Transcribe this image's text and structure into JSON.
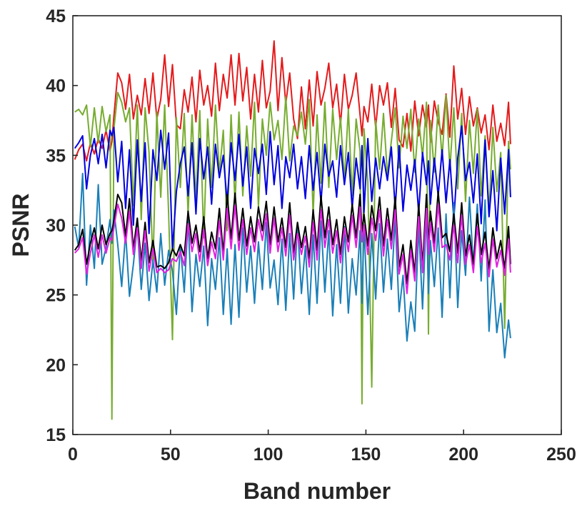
{
  "chart_data": {
    "type": "line",
    "title": "",
    "xlabel": "Band number",
    "ylabel": "PSNR",
    "xlim": [
      0,
      250
    ],
    "ylim": [
      15,
      45
    ],
    "xticks": [
      0,
      50,
      100,
      150,
      200,
      250
    ],
    "yticks": [
      15,
      20,
      25,
      30,
      35,
      40,
      45
    ],
    "grid": false,
    "legend": "none",
    "x": [
      1,
      3,
      5,
      7,
      9,
      11,
      13,
      15,
      17,
      19,
      20,
      21,
      23,
      25,
      27,
      29,
      31,
      33,
      35,
      37,
      39,
      41,
      43,
      45,
      47,
      49,
      51,
      53,
      55,
      57,
      59,
      61,
      63,
      65,
      67,
      69,
      71,
      73,
      75,
      77,
      79,
      81,
      83,
      85,
      87,
      89,
      91,
      93,
      95,
      97,
      99,
      101,
      103,
      105,
      107,
      109,
      111,
      113,
      115,
      117,
      119,
      121,
      123,
      125,
      127,
      129,
      131,
      133,
      135,
      137,
      139,
      141,
      143,
      145,
      147,
      148,
      149,
      151,
      153,
      155,
      157,
      159,
      161,
      163,
      165,
      167,
      169,
      171,
      173,
      175,
      177,
      179,
      181,
      182,
      183,
      185,
      187,
      189,
      191,
      193,
      195,
      197,
      199,
      201,
      203,
      205,
      207,
      209,
      211,
      213,
      215,
      217,
      219,
      221,
      223,
      224
    ],
    "series": [
      {
        "color": "#e41a1c",
        "values": [
          34.7,
          35.4,
          35.8,
          34.6,
          35.9,
          35.1,
          36.2,
          35.5,
          36.8,
          35.3,
          36.0,
          37.8,
          40.9,
          40.2,
          38.3,
          40.8,
          37.6,
          39.3,
          37.9,
          40.5,
          38.0,
          40.9,
          37.6,
          39.0,
          42.2,
          38.5,
          41.5,
          37.2,
          36.9,
          39.7,
          38.1,
          40.6,
          37.4,
          41.1,
          38.6,
          40.0,
          37.8,
          41.6,
          38.2,
          40.8,
          39.1,
          42.2,
          38.6,
          42.3,
          38.9,
          41.3,
          37.6,
          40.8,
          38.1,
          41.8,
          38.4,
          39.6,
          43.2,
          38.2,
          42.0,
          38.7,
          40.9,
          37.6,
          36.2,
          39.9,
          36.9,
          40.4,
          37.1,
          41.0,
          38.6,
          39.8,
          41.6,
          38.4,
          40.1,
          37.2,
          40.8,
          38.3,
          39.3,
          40.9,
          37.9,
          36.4,
          38.5,
          37.4,
          40.1,
          37.0,
          40.0,
          38.6,
          40.2,
          37.0,
          39.8,
          36.1,
          35.6,
          38.0,
          35.3,
          38.9,
          36.4,
          38.6,
          37.0,
          38.6,
          35.9,
          38.9,
          37.4,
          36.5,
          39.4,
          36.3,
          41.4,
          37.6,
          39.8,
          36.5,
          39.2,
          37.1,
          38.4,
          36.6,
          37.9,
          35.4,
          38.6,
          36.0,
          37.3,
          35.7,
          38.8,
          35.8
        ]
      },
      {
        "color": "#77ac30",
        "values": [
          38.1,
          38.3,
          37.9,
          38.6,
          35.6,
          38.4,
          35.9,
          38.5,
          36.7,
          37.9,
          16.1,
          36.9,
          39.5,
          38.8,
          37.4,
          38.4,
          31.4,
          38.6,
          30.4,
          38.4,
          35.2,
          27.0,
          38.1,
          32.0,
          38.6,
          30.9,
          21.8,
          37.7,
          32.7,
          38.0,
          30.8,
          37.9,
          31.8,
          38.2,
          29.1,
          37.6,
          32.7,
          38.6,
          33.7,
          36.8,
          29.6,
          37.9,
          31.6,
          38.1,
          32.1,
          37.1,
          33.5,
          38.8,
          31.3,
          37.6,
          35.0,
          38.8,
          36.1,
          37.5,
          34.7,
          39.2,
          34.6,
          37.1,
          36.4,
          38.1,
          35.8,
          39.0,
          30.8,
          37.9,
          33.0,
          38.8,
          32.7,
          38.3,
          34.7,
          37.7,
          33.2,
          38.3,
          32.1,
          37.6,
          35.3,
          17.2,
          36.9,
          33.1,
          18.4,
          37.5,
          34.0,
          38.0,
          33.6,
          36.0,
          38.4,
          34.1,
          37.8,
          35.5,
          38.3,
          33.8,
          37.6,
          34.9,
          38.8,
          22.2,
          37.5,
          33.8,
          38.6,
          34.8,
          39.3,
          34.0,
          38.4,
          32.6,
          38.0,
          31.7,
          37.5,
          33.7,
          38.3,
          32.1,
          36.4,
          30.9,
          37.0,
          32.4,
          35.2,
          22.6,
          36.0,
          34.0
        ]
      },
      {
        "color": "#0000e0",
        "values": [
          35.5,
          35.9,
          36.4,
          32.6,
          35.0,
          36.2,
          34.4,
          36.5,
          34.1,
          36.8,
          36.4,
          37.0,
          33.1,
          36.0,
          31.2,
          35.4,
          30.0,
          36.1,
          31.7,
          35.9,
          29.4,
          35.4,
          33.2,
          36.8,
          34.0,
          36.6,
          28.2,
          32.4,
          34.4,
          35.6,
          32.1,
          35.9,
          30.8,
          36.2,
          33.3,
          35.6,
          31.5,
          35.8,
          33.4,
          35.0,
          31.6,
          35.9,
          33.2,
          36.5,
          32.8,
          35.6,
          31.2,
          35.5,
          33.7,
          35.8,
          32.2,
          36.7,
          32.9,
          35.7,
          31.2,
          34.9,
          33.4,
          35.8,
          32.6,
          34.9,
          31.9,
          35.7,
          32.5,
          35.2,
          31.6,
          35.8,
          33.5,
          34.6,
          32.0,
          35.7,
          32.9,
          35.2,
          31.2,
          34.8,
          32.6,
          35.7,
          30.9,
          36.2,
          31.7,
          34.8,
          32.6,
          34.9,
          33.2,
          35.6,
          31.2,
          35.7,
          31.0,
          34.3,
          32.5,
          34.7,
          30.9,
          35.2,
          32.9,
          34.6,
          31.5,
          34.8,
          32.1,
          35.4,
          31.6,
          34.7,
          30.4,
          34.8,
          37.1,
          33.2,
          34.5,
          31.6,
          35.1,
          30.1,
          36.1,
          30.6,
          33.9,
          29.6,
          34.8,
          30.8,
          35.4,
          32.0
        ]
      },
      {
        "color": "#1a7fb8",
        "values": [
          29.9,
          28.4,
          33.7,
          25.7,
          30.0,
          26.9,
          32.9,
          27.2,
          28.4,
          30.4,
          28.7,
          31.1,
          28.6,
          25.6,
          29.5,
          24.9,
          27.2,
          30.0,
          25.4,
          28.7,
          24.6,
          27.5,
          25.2,
          29.4,
          25.7,
          28.2,
          26.7,
          23.6,
          28.6,
          25.2,
          30.4,
          23.8,
          27.9,
          25.6,
          28.5,
          22.8,
          27.6,
          25.4,
          29.1,
          23.6,
          28.3,
          22.9,
          28.6,
          23.4,
          29.8,
          25.2,
          28.5,
          24.4,
          28.8,
          25.4,
          30.2,
          25.5,
          27.5,
          24.3,
          29.0,
          23.9,
          29.4,
          24.7,
          30.1,
          25.1,
          28.5,
          23.6,
          29.3,
          24.4,
          30.3,
          25.2,
          29.6,
          23.5,
          28.6,
          24.4,
          29.9,
          23.7,
          27.6,
          25.0,
          29.6,
          24.4,
          30.0,
          23.6,
          29.4,
          24.7,
          30.1,
          25.2,
          29.0,
          25.4,
          30.6,
          23.8,
          26.4,
          21.7,
          24.5,
          22.4,
          30.0,
          24.0,
          31.1,
          25.1,
          28.9,
          25.6,
          29.8,
          23.4,
          30.8,
          24.8,
          31.6,
          24.1,
          29.6,
          26.4,
          32.0,
          27.0,
          31.5,
          26.0,
          31.8,
          22.4,
          26.8,
          22.3,
          24.4,
          20.5,
          23.2,
          21.9
        ]
      },
      {
        "color": "#000000",
        "values": [
          28.2,
          28.6,
          29.7,
          27.2,
          28.7,
          29.8,
          28.3,
          30.0,
          28.6,
          29.4,
          29.6,
          30.3,
          32.2,
          31.6,
          29.2,
          31.9,
          28.3,
          30.5,
          27.4,
          30.2,
          27.3,
          28.9,
          27.0,
          27.1,
          26.9,
          27.3,
          28.3,
          27.8,
          28.6,
          27.8,
          31.0,
          28.7,
          30.0,
          28.1,
          30.6,
          27.6,
          29.5,
          28.3,
          31.2,
          28.0,
          32.2,
          29.0,
          32.3,
          28.9,
          31.2,
          28.5,
          30.6,
          28.8,
          31.3,
          29.6,
          31.7,
          28.6,
          31.3,
          28.8,
          30.5,
          28.4,
          31.6,
          28.0,
          30.2,
          28.4,
          29.9,
          27.6,
          31.1,
          28.2,
          32.1,
          29.1,
          31.3,
          28.6,
          30.4,
          27.9,
          30.6,
          28.8,
          31.5,
          29.1,
          32.2,
          29.5,
          30.8,
          28.5,
          31.4,
          29.6,
          32.0,
          28.5,
          31.2,
          28.9,
          32.0,
          27.0,
          28.6,
          25.8,
          28.9,
          26.6,
          31.5,
          27.1,
          32.2,
          28.5,
          31.0,
          28.7,
          32.4,
          29.1,
          29.4,
          28.1,
          30.8,
          28.0,
          31.6,
          27.8,
          29.3,
          27.2,
          30.8,
          27.9,
          29.5,
          26.8,
          29.8,
          27.6,
          28.9,
          26.9,
          29.9,
          27.2
        ]
      },
      {
        "color": "#e020e0",
        "values": [
          28.0,
          28.3,
          29.1,
          26.5,
          28.0,
          29.3,
          27.7,
          29.3,
          28.0,
          29.1,
          28.9,
          29.8,
          31.5,
          30.5,
          28.7,
          31.0,
          27.9,
          29.8,
          26.9,
          29.6,
          26.7,
          28.3,
          26.6,
          26.9,
          26.6,
          26.8,
          27.6,
          27.4,
          28.1,
          27.1,
          30.1,
          28.1,
          29.4,
          27.4,
          29.7,
          27.1,
          28.8,
          27.6,
          30.3,
          27.5,
          31.2,
          28.3,
          31.4,
          28.2,
          30.4,
          27.9,
          29.8,
          28.1,
          30.4,
          28.9,
          30.8,
          28.0,
          30.5,
          28.1,
          29.8,
          27.8,
          30.7,
          27.5,
          29.4,
          27.9,
          29.2,
          27.0,
          30.2,
          27.5,
          31.1,
          28.4,
          30.4,
          28.0,
          29.6,
          27.3,
          29.8,
          28.1,
          30.7,
          28.4,
          31.3,
          28.8,
          30.0,
          27.9,
          30.5,
          28.9,
          31.1,
          27.8,
          30.4,
          28.3,
          31.1,
          26.5,
          27.9,
          25.1,
          28.2,
          26.0,
          30.6,
          26.6,
          31.2,
          27.9,
          30.2,
          28.1,
          31.5,
          28.4,
          28.6,
          27.5,
          30.0,
          27.3,
          30.7,
          27.2,
          28.6,
          26.6,
          29.9,
          27.3,
          28.7,
          26.3,
          29.0,
          27.0,
          28.2,
          26.4,
          29.0,
          26.6
        ]
      }
    ]
  }
}
